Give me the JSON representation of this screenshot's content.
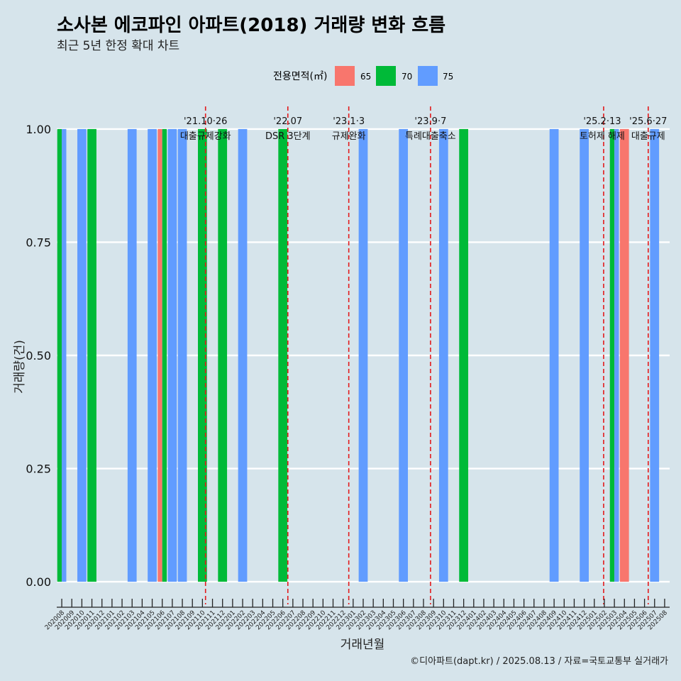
{
  "title": "소사본 에코파인 아파트(2018) 거래량 변화 흐름",
  "subtitle": "최근 5년 한정 확대 차트",
  "caption": "©디아파트(dapt.kr) / 2025.08.13 / 자료=국토교통부 실거래가",
  "chart_data": {
    "type": "bar",
    "title": "소사본 에코파인 아파트(2018) 거래량 변화 흐름",
    "subtitle": "최근 5년 한정 확대 차트",
    "xlabel": "거래년월",
    "ylabel": "거래량(건)",
    "ylim": [
      -0.05,
      1.05
    ],
    "yticks": [
      "0.00",
      "0.25",
      "0.50",
      "0.75",
      "1.00"
    ],
    "ytick_values": [
      0,
      0.25,
      0.5,
      0.75,
      1
    ],
    "grid": true,
    "legend": {
      "title": "전용면적(㎡)",
      "position": "top",
      "entries": [
        {
          "label": "65",
          "color": "#f8766d"
        },
        {
          "label": "70",
          "color": "#00ba38"
        },
        {
          "label": "75",
          "color": "#619cff"
        }
      ]
    },
    "categories": [
      "202008",
      "202009",
      "202010",
      "202011",
      "202012",
      "202101",
      "202102",
      "202103",
      "202104",
      "202105",
      "202106",
      "202107",
      "202108",
      "202109",
      "202110",
      "202111",
      "202112",
      "202201",
      "202202",
      "202203",
      "202204",
      "202205",
      "202206",
      "202207",
      "202208",
      "202209",
      "202210",
      "202211",
      "202212",
      "202301",
      "202302",
      "202303",
      "202304",
      "202305",
      "202306",
      "202307",
      "202308",
      "202309",
      "202310",
      "202311",
      "202312",
      "202401",
      "202402",
      "202403",
      "202404",
      "202405",
      "202406",
      "202407",
      "202408",
      "202409",
      "202410",
      "202411",
      "202412",
      "202501",
      "202502",
      "202503",
      "202504",
      "202505",
      "202506",
      "202507",
      "202508"
    ],
    "bars": [
      {
        "month": "202008",
        "area": "70",
        "value": 1
      },
      {
        "month": "202008",
        "area": "75",
        "value": 1
      },
      {
        "month": "202010",
        "area": "75",
        "value": 1
      },
      {
        "month": "202011",
        "area": "70",
        "value": 1
      },
      {
        "month": "202103",
        "area": "75",
        "value": 1
      },
      {
        "month": "202105",
        "area": "75",
        "value": 1
      },
      {
        "month": "202106",
        "area": "65",
        "value": 1
      },
      {
        "month": "202106",
        "area": "70",
        "value": 1
      },
      {
        "month": "202107",
        "area": "75",
        "value": 1
      },
      {
        "month": "202108",
        "area": "75",
        "value": 1
      },
      {
        "month": "202110",
        "area": "70",
        "value": 1
      },
      {
        "month": "202112",
        "area": "70",
        "value": 1
      },
      {
        "month": "202202",
        "area": "75",
        "value": 1
      },
      {
        "month": "202206",
        "area": "70",
        "value": 1
      },
      {
        "month": "202302",
        "area": "75",
        "value": 1
      },
      {
        "month": "202306",
        "area": "75",
        "value": 1
      },
      {
        "month": "202310",
        "area": "75",
        "value": 1
      },
      {
        "month": "202312",
        "area": "70",
        "value": 1
      },
      {
        "month": "202409",
        "area": "75",
        "value": 1
      },
      {
        "month": "202412",
        "area": "75",
        "value": 1
      },
      {
        "month": "202503",
        "area": "70",
        "value": 1
      },
      {
        "month": "202503",
        "area": "75",
        "value": 1
      },
      {
        "month": "202504",
        "area": "65",
        "value": 1
      },
      {
        "month": "202507",
        "area": "75",
        "value": 1
      }
    ],
    "annotations": [
      {
        "date": "2021-10-26",
        "line1": "'21.10·26",
        "line2": "대출규제강화"
      },
      {
        "date": "2022-07-01",
        "line1": "'22.07",
        "line2": "DSR 3단계"
      },
      {
        "date": "2023-01-03",
        "line1": "'23.1·3",
        "line2": "규제완화"
      },
      {
        "date": "2023-09-07",
        "line1": "'23.9·7",
        "line2": "특례대출축소"
      },
      {
        "date": "2025-02-13",
        "line1": "'25.2·13",
        "line2": "토허제 해제"
      },
      {
        "date": "2025-06-27",
        "line1": "'25.6·27",
        "line2": "대출규제"
      }
    ]
  }
}
